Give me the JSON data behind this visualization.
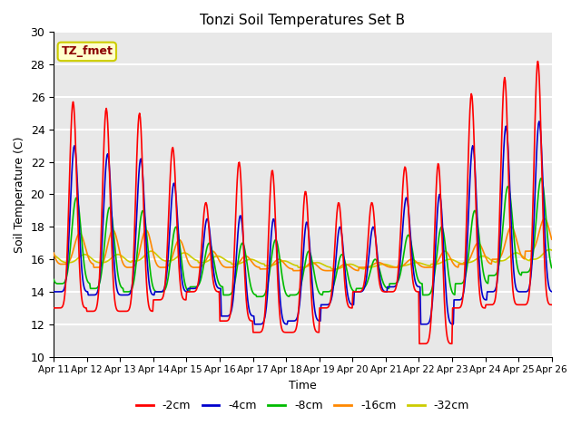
{
  "title": "Tonzi Soil Temperatures Set B",
  "xlabel": "Time",
  "ylabel": "Soil Temperature (C)",
  "ylim": [
    10,
    30
  ],
  "yticks": [
    10,
    12,
    14,
    16,
    18,
    20,
    22,
    24,
    26,
    28,
    30
  ],
  "annotation_text": "TZ_fmet",
  "annotation_color": "#8B0000",
  "annotation_bg": "#FFFFCC",
  "annotation_border": "#CCCC00",
  "series_colors": {
    "-2cm": "#FF0000",
    "-4cm": "#0000CD",
    "-8cm": "#00BB00",
    "-16cm": "#FF8800",
    "-32cm": "#CCCC00"
  },
  "background_color": "#E8E8E8",
  "grid_color": "#FFFFFF",
  "line_width": 1.2,
  "tick_labels": [
    "Apr 11",
    "Apr 12",
    "Apr 13",
    "Apr 14",
    "Apr 15",
    "Apr 16",
    "Apr 17",
    "Apr 18",
    "Apr 19",
    "Apr 20",
    "Apr 21",
    "Apr 22",
    "Apr 23",
    "Apr 24",
    "Apr 25",
    "Apr 26"
  ]
}
